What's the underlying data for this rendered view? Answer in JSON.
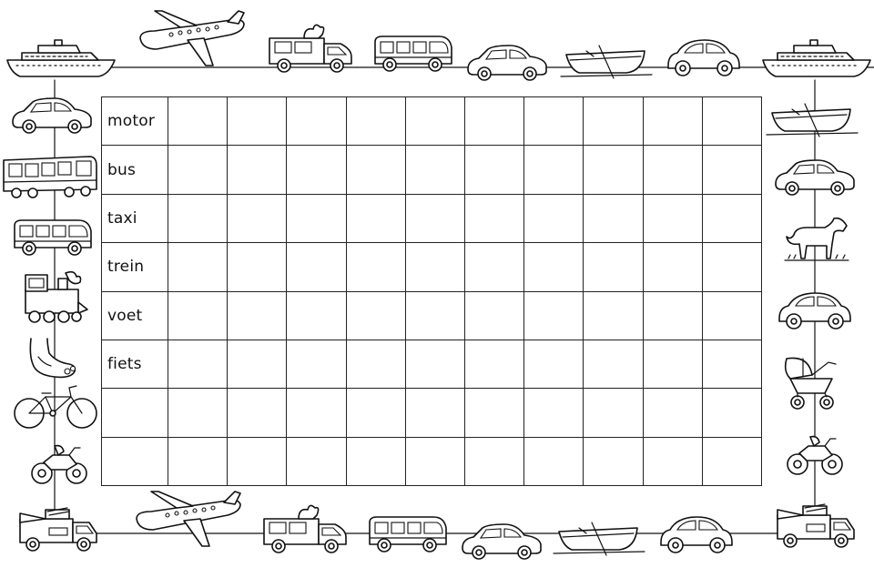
{
  "worksheet": {
    "rows": [
      "motor",
      "bus",
      "taxi",
      "trein",
      "voet",
      "fiets",
      "",
      ""
    ],
    "column_count": 10
  },
  "border_icons": {
    "top": [
      "ship-icon",
      "airplane-icon",
      "ice-cream-truck-icon",
      "minibus-icon",
      "small-car-icon",
      "rowboat-icon",
      "beetle-car-icon",
      "ship-icon"
    ],
    "left": [
      "car-icon",
      "tram-icon",
      "minibus-icon",
      "train-icon",
      "foot-icon",
      "bicycle-icon",
      "motorcycle-icon",
      "fire-truck-icon"
    ],
    "right": [
      "rowboat-icon",
      "car-icon",
      "horse-icon",
      "beetle-car-icon",
      "stroller-icon",
      "motorcycle-icon",
      "fire-truck-icon"
    ],
    "bottom": [
      "airplane-icon",
      "ice-cream-truck-icon",
      "minibus-icon",
      "small-car-icon",
      "rowboat-icon",
      "beetle-car-icon"
    ]
  }
}
